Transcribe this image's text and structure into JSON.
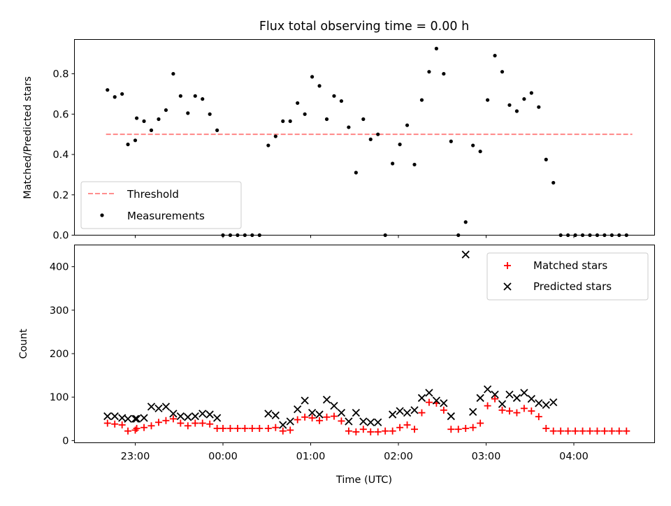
{
  "chart_data": [
    {
      "type": "scatter",
      "title": "Flux total observing time = 0.00 h",
      "xlabel": "",
      "ylabel": "Matched/Predicted stars",
      "ylim": [
        0,
        0.97
      ],
      "yticks": [
        "0.0",
        "0.2",
        "0.4",
        "0.6",
        "0.8"
      ],
      "xticks": [
        "23:00",
        "00:00",
        "01:00",
        "02:00",
        "03:00",
        "04:00"
      ],
      "legend_position": "lower-left",
      "legend": [
        "Threshold",
        "Measurements"
      ],
      "threshold": {
        "value": 0.5,
        "x_start": "22:40",
        "x_end": "04:40",
        "color": "#ff7f7f"
      },
      "measurements": [
        [
          "22:41",
          0.72
        ],
        [
          "22:46",
          0.685
        ],
        [
          "22:51",
          0.7
        ],
        [
          "22:55",
          0.45
        ],
        [
          "23:00",
          0.47
        ],
        [
          "23:01",
          0.58
        ],
        [
          "23:06",
          0.565
        ],
        [
          "23:11",
          0.52
        ],
        [
          "23:16",
          0.575
        ],
        [
          "23:21",
          0.62
        ],
        [
          "23:26",
          0.8
        ],
        [
          "23:31",
          0.69
        ],
        [
          "23:36",
          0.605
        ],
        [
          "23:41",
          0.69
        ],
        [
          "23:46",
          0.675
        ],
        [
          "23:51",
          0.6
        ],
        [
          "23:56",
          0.52
        ],
        [
          "00:00",
          0.0
        ],
        [
          "00:05",
          0.0
        ],
        [
          "00:10",
          0.0
        ],
        [
          "00:15",
          0.0
        ],
        [
          "00:20",
          0.0
        ],
        [
          "00:25",
          0.0
        ],
        [
          "00:31",
          0.445
        ],
        [
          "00:36",
          0.49
        ],
        [
          "00:41",
          0.565
        ],
        [
          "00:46",
          0.565
        ],
        [
          "00:51",
          0.655
        ],
        [
          "00:56",
          0.6
        ],
        [
          "01:01",
          0.785
        ],
        [
          "01:06",
          0.74
        ],
        [
          "01:11",
          0.575
        ],
        [
          "01:16",
          0.69
        ],
        [
          "01:21",
          0.665
        ],
        [
          "01:26",
          0.535
        ],
        [
          "01:31",
          0.31
        ],
        [
          "01:36",
          0.575
        ],
        [
          "01:41",
          0.475
        ],
        [
          "01:46",
          0.5
        ],
        [
          "01:51",
          0.0
        ],
        [
          "01:56",
          0.355
        ],
        [
          "02:01",
          0.45
        ],
        [
          "02:06",
          0.545
        ],
        [
          "02:11",
          0.35
        ],
        [
          "02:16",
          0.67
        ],
        [
          "02:21",
          0.81
        ],
        [
          "02:26",
          0.925
        ],
        [
          "02:31",
          0.8
        ],
        [
          "02:36",
          0.465
        ],
        [
          "02:41",
          0.0
        ],
        [
          "02:46",
          0.065
        ],
        [
          "02:51",
          0.445
        ],
        [
          "02:56",
          0.415
        ],
        [
          "03:01",
          0.67
        ],
        [
          "03:06",
          0.89
        ],
        [
          "03:11",
          0.81
        ],
        [
          "03:16",
          0.645
        ],
        [
          "03:21",
          0.615
        ],
        [
          "03:26",
          0.675
        ],
        [
          "03:31",
          0.705
        ],
        [
          "03:36",
          0.635
        ],
        [
          "03:41",
          0.375
        ],
        [
          "03:46",
          0.26
        ],
        [
          "03:51",
          0.0
        ],
        [
          "03:56",
          0.0
        ],
        [
          "04:01",
          0.0
        ],
        [
          "04:06",
          0.0
        ],
        [
          "04:11",
          0.0
        ],
        [
          "04:16",
          0.0
        ],
        [
          "04:21",
          0.0
        ],
        [
          "04:26",
          0.0
        ],
        [
          "04:31",
          0.0
        ],
        [
          "04:36",
          0.0
        ]
      ]
    },
    {
      "type": "scatter",
      "title": "",
      "xlabel": "Time (UTC)",
      "ylabel": "Count",
      "ylim": [
        -5,
        450
      ],
      "yticks": [
        "0",
        "100",
        "200",
        "300",
        "400"
      ],
      "xticks": [
        "23:00",
        "00:00",
        "01:00",
        "02:00",
        "03:00",
        "04:00"
      ],
      "legend_position": "upper-right",
      "series": [
        {
          "name": "Matched stars",
          "marker": "+",
          "color": "#ff0000",
          "points": [
            [
              "22:41",
              40
            ],
            [
              "22:46",
              38
            ],
            [
              "22:51",
              36
            ],
            [
              "22:55",
              22
            ],
            [
              "23:00",
              24
            ],
            [
              "23:01",
              28
            ],
            [
              "23:06",
              30
            ],
            [
              "23:11",
              34
            ],
            [
              "23:16",
              42
            ],
            [
              "23:21",
              46
            ],
            [
              "23:26",
              50
            ],
            [
              "23:31",
              40
            ],
            [
              "23:36",
              34
            ],
            [
              "23:41",
              40
            ],
            [
              "23:46",
              40
            ],
            [
              "23:51",
              38
            ],
            [
              "23:56",
              28
            ],
            [
              "00:00",
              28
            ],
            [
              "00:05",
              28
            ],
            [
              "00:10",
              28
            ],
            [
              "00:15",
              28
            ],
            [
              "00:20",
              28
            ],
            [
              "00:25",
              28
            ],
            [
              "00:31",
              28
            ],
            [
              "00:36",
              30
            ],
            [
              "00:41",
              22
            ],
            [
              "00:46",
              24
            ],
            [
              "00:51",
              48
            ],
            [
              "00:56",
              54
            ],
            [
              "01:01",
              52
            ],
            [
              "01:06",
              46
            ],
            [
              "01:11",
              54
            ],
            [
              "01:16",
              56
            ],
            [
              "01:21",
              45
            ],
            [
              "01:26",
              22
            ],
            [
              "01:31",
              20
            ],
            [
              "01:36",
              26
            ],
            [
              "01:41",
              20
            ],
            [
              "01:46",
              20
            ],
            [
              "01:51",
              22
            ],
            [
              "01:56",
              22
            ],
            [
              "02:01",
              30
            ],
            [
              "02:06",
              36
            ],
            [
              "02:11",
              26
            ],
            [
              "02:16",
              64
            ],
            [
              "02:21",
              88
            ],
            [
              "02:26",
              86
            ],
            [
              "02:31",
              70
            ],
            [
              "02:36",
              26
            ],
            [
              "02:41",
              26
            ],
            [
              "02:46",
              28
            ],
            [
              "02:51",
              30
            ],
            [
              "02:56",
              40
            ],
            [
              "03:01",
              80
            ],
            [
              "03:06",
              96
            ],
            [
              "03:11",
              70
            ],
            [
              "03:16",
              68
            ],
            [
              "03:21",
              64
            ],
            [
              "03:26",
              74
            ],
            [
              "03:31",
              68
            ],
            [
              "03:36",
              55
            ],
            [
              "03:41",
              28
            ],
            [
              "03:46",
              22
            ],
            [
              "03:51",
              22
            ],
            [
              "03:56",
              22
            ],
            [
              "04:01",
              22
            ],
            [
              "04:06",
              22
            ],
            [
              "04:11",
              22
            ],
            [
              "04:16",
              22
            ],
            [
              "04:21",
              22
            ],
            [
              "04:26",
              22
            ],
            [
              "04:31",
              22
            ],
            [
              "04:36",
              22
            ]
          ]
        },
        {
          "name": "Predicted stars",
          "marker": "x",
          "color": "#000000",
          "points": [
            [
              "22:41",
              56
            ],
            [
              "22:46",
              56
            ],
            [
              "22:51",
              52
            ],
            [
              "22:55",
              50
            ],
            [
              "23:00",
              50
            ],
            [
              "23:01",
              50
            ],
            [
              "23:06",
              52
            ],
            [
              "23:11",
              78
            ],
            [
              "23:16",
              74
            ],
            [
              "23:21",
              78
            ],
            [
              "23:26",
              62
            ],
            [
              "23:31",
              56
            ],
            [
              "23:36",
              54
            ],
            [
              "23:41",
              56
            ],
            [
              "23:46",
              62
            ],
            [
              "23:51",
              60
            ],
            [
              "23:56",
              52
            ],
            [
              "00:31",
              62
            ],
            [
              "00:36",
              58
            ],
            [
              "00:41",
              36
            ],
            [
              "00:46",
              44
            ],
            [
              "00:51",
              72
            ],
            [
              "00:56",
              92
            ],
            [
              "01:01",
              64
            ],
            [
              "01:06",
              60
            ],
            [
              "01:11",
              94
            ],
            [
              "01:16",
              80
            ],
            [
              "01:21",
              64
            ],
            [
              "01:26",
              44
            ],
            [
              "01:31",
              64
            ],
            [
              "01:36",
              44
            ],
            [
              "01:41",
              42
            ],
            [
              "01:46",
              42
            ],
            [
              "01:56",
              60
            ],
            [
              "02:01",
              68
            ],
            [
              "02:06",
              64
            ],
            [
              "02:11",
              70
            ],
            [
              "02:16",
              98
            ],
            [
              "02:21",
              110
            ],
            [
              "02:26",
              92
            ],
            [
              "02:31",
              86
            ],
            [
              "02:36",
              56
            ],
            [
              "02:46",
              428
            ],
            [
              "02:51",
              66
            ],
            [
              "02:56",
              98
            ],
            [
              "03:01",
              118
            ],
            [
              "03:06",
              106
            ],
            [
              "03:11",
              84
            ],
            [
              "03:16",
              106
            ],
            [
              "03:21",
              98
            ],
            [
              "03:26",
              110
            ],
            [
              "03:31",
              96
            ],
            [
              "03:36",
              86
            ],
            [
              "03:41",
              82
            ],
            [
              "03:46",
              88
            ]
          ]
        }
      ]
    }
  ]
}
